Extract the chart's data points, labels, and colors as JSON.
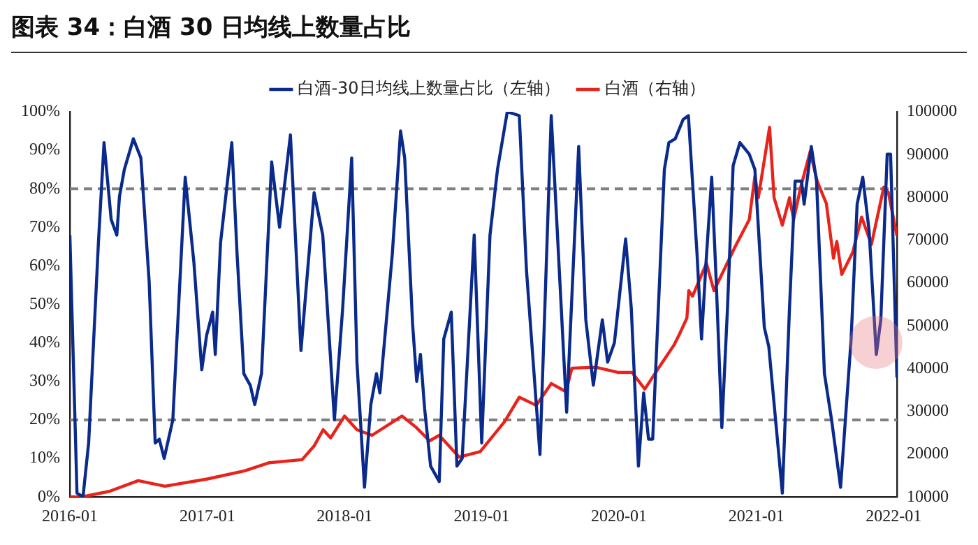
{
  "chart_data": {
    "type": "line",
    "title": "图表 34：白酒 30 日均线上数量占比",
    "legend": "top",
    "marker": "none",
    "line_style": "solid",
    "xlim": [
      "2016-01-01",
      "2022-01-10"
    ],
    "xticks": [
      "2016-01",
      "2017-01",
      "2018-01",
      "2019-01",
      "2020-01",
      "2021-01",
      "2022-01"
    ],
    "ylim": [
      0,
      100
    ],
    "yticks": [
      {
        "value": 0,
        "label": "0%"
      },
      {
        "value": 10,
        "label": "10%"
      },
      {
        "value": 20,
        "label": "20%"
      },
      {
        "value": 30,
        "label": "30%"
      },
      {
        "value": 40,
        "label": "40%"
      },
      {
        "value": 50,
        "label": "50%"
      },
      {
        "value": 60,
        "label": "60%"
      },
      {
        "value": 70,
        "label": "70%"
      },
      {
        "value": 80,
        "label": "80%"
      },
      {
        "value": 90,
        "label": "90%"
      },
      {
        "value": 100,
        "label": "100%"
      }
    ],
    "y2lim": [
      10000,
      100000
    ],
    "y2ticks": [
      10000,
      20000,
      30000,
      40000,
      50000,
      60000,
      70000,
      80000,
      90000,
      100000
    ],
    "ref_lines": [
      {
        "axis": "y",
        "value": 80,
        "color": "#808080",
        "line_style": "dashed"
      },
      {
        "axis": "y",
        "value": 20,
        "color": "#808080",
        "line_style": "dashed"
      }
    ],
    "series": [
      {
        "name": "白酒-30日均线上数量占比（左轴）",
        "color": "#0a2a8c",
        "x": [
          "2016-01-01",
          "2016-01-20",
          "2016-02-05",
          "2016-02-20",
          "2016-03-17",
          "2016-04-01",
          "2016-04-20",
          "2016-05-05",
          "2016-05-12",
          "2016-05-25",
          "2016-06-18",
          "2016-07-08",
          "2016-07-30",
          "2016-08-15",
          "2016-08-26",
          "2016-09-08",
          "2016-10-01",
          "2016-11-03",
          "2016-11-26",
          "2016-12-17",
          "2016-12-30",
          "2017-01-15",
          "2017-01-22",
          "2017-02-05",
          "2017-03-07",
          "2017-03-21",
          "2017-04-08",
          "2017-04-25",
          "2017-05-07",
          "2017-05-25",
          "2017-06-21",
          "2017-07-12",
          "2017-08-10",
          "2017-09-07",
          "2017-10-12",
          "2017-11-04",
          "2017-12-05",
          "2017-12-27",
          "2018-01-20",
          "2018-02-03",
          "2018-02-23",
          "2018-03-12",
          "2018-03-27",
          "2018-04-05",
          "2018-05-08",
          "2018-05-30",
          "2018-06-10",
          "2018-07-01",
          "2018-07-12",
          "2018-07-22",
          "2018-08-02",
          "2018-08-18",
          "2018-09-10",
          "2018-09-22",
          "2018-10-12",
          "2018-10-27",
          "2018-11-10",
          "2018-12-12",
          "2019-01-01",
          "2019-01-23",
          "2019-02-12",
          "2019-03-10",
          "2019-04-11",
          "2019-04-30",
          "2019-06-05",
          "2019-07-05",
          "2019-07-20",
          "2019-08-15",
          "2019-09-16",
          "2019-10-05",
          "2019-10-25",
          "2019-11-18",
          "2019-12-02",
          "2019-12-20",
          "2020-01-19",
          "2020-02-03",
          "2020-02-22",
          "2020-03-07",
          "2020-03-20",
          "2020-03-31",
          "2020-05-01",
          "2020-05-13",
          "2020-05-30",
          "2020-06-20",
          "2020-07-04",
          "2020-07-27",
          "2020-08-08",
          "2020-08-20",
          "2020-09-04",
          "2020-09-16",
          "2020-10-01",
          "2020-10-16",
          "2020-10-31",
          "2020-11-18",
          "2020-12-13",
          "2020-12-28",
          "2021-01-22",
          "2021-02-03",
          "2021-03-11",
          "2021-03-30",
          "2021-04-14",
          "2021-05-01",
          "2021-05-08",
          "2021-05-27",
          "2021-06-10",
          "2021-07-01",
          "2021-07-20",
          "2021-08-13",
          "2021-09-10",
          "2021-09-26",
          "2021-10-11",
          "2021-10-28",
          "2021-11-16",
          "2021-11-28",
          "2021-12-15",
          "2021-12-24",
          "2022-01-10"
        ],
        "values": [
          68,
          1,
          0,
          14,
          66,
          92,
          72,
          68,
          78,
          85,
          93,
          88,
          56,
          14,
          15,
          10,
          20,
          83,
          61,
          33,
          42,
          48,
          37,
          66,
          92,
          63,
          32,
          29,
          24,
          32,
          87,
          70,
          94,
          38,
          79,
          68,
          20,
          49,
          88,
          35,
          2.5,
          24,
          32,
          27,
          63,
          95,
          88,
          45,
          30,
          37,
          23,
          8,
          4,
          41,
          48,
          8,
          10,
          68,
          14,
          68,
          85,
          100,
          99,
          59,
          11,
          99,
          71,
          22,
          91,
          46,
          29,
          46,
          35,
          40,
          67,
          49,
          8,
          27,
          15,
          15,
          85,
          92,
          93,
          98,
          99,
          63,
          41,
          61,
          83,
          56,
          18,
          49,
          86,
          92,
          89,
          85,
          44,
          39,
          1,
          49,
          82,
          82,
          76,
          91,
          82,
          32,
          20,
          2.5,
          41,
          76,
          83,
          69,
          37,
          46,
          89,
          89,
          31
        ]
      },
      {
        "name": "白酒（右轴）",
        "color": "#e8231c",
        "axis": "y2",
        "x": [
          "2016-01-01",
          "2016-02-01",
          "2016-04-15",
          "2016-07-01",
          "2016-09-10",
          "2017-01-01",
          "2017-04-10",
          "2017-06-15",
          "2017-09-10",
          "2017-10-12",
          "2017-11-05",
          "2017-11-25",
          "2018-01-01",
          "2018-02-03",
          "2018-03-15",
          "2018-06-03",
          "2018-07-10",
          "2018-08-15",
          "2018-09-10",
          "2018-11-02",
          "2018-12-28",
          "2019-03-03",
          "2019-04-11",
          "2019-05-26",
          "2019-07-05",
          "2019-08-13",
          "2019-08-29",
          "2019-11-01",
          "2019-12-29",
          "2020-02-05",
          "2020-03-10",
          "2020-04-17",
          "2020-05-26",
          "2020-06-10",
          "2020-06-30",
          "2020-07-05",
          "2020-07-15",
          "2020-08-21",
          "2020-09-10",
          "2020-11-05",
          "2020-12-13",
          "2020-12-28",
          "2021-01-06",
          "2021-02-05",
          "2021-02-17",
          "2021-03-11",
          "2021-03-30",
          "2021-04-10",
          "2021-04-29",
          "2021-05-24",
          "2021-06-12",
          "2021-07-06",
          "2021-07-25",
          "2021-08-03",
          "2021-08-16",
          "2021-09-14",
          "2021-10-08",
          "2021-11-03",
          "2021-12-06",
          "2021-12-18",
          "2022-01-10"
        ],
        "values": [
          10000,
          10000,
          11300,
          13800,
          12500,
          14200,
          16100,
          18000,
          18700,
          21900,
          25700,
          23800,
          28900,
          25700,
          24400,
          28900,
          26300,
          23100,
          24400,
          19300,
          20600,
          27600,
          33300,
          31400,
          36500,
          34600,
          40100,
          40300,
          39100,
          39100,
          35200,
          40300,
          45400,
          48000,
          51800,
          58200,
          56900,
          64600,
          58200,
          68400,
          74800,
          85000,
          79900,
          96400,
          79900,
          73500,
          79900,
          74800,
          82400,
          90700,
          83700,
          78600,
          65800,
          69700,
          62000,
          67100,
          75400,
          69000,
          82400,
          81200,
          71000
        ]
      }
    ]
  }
}
